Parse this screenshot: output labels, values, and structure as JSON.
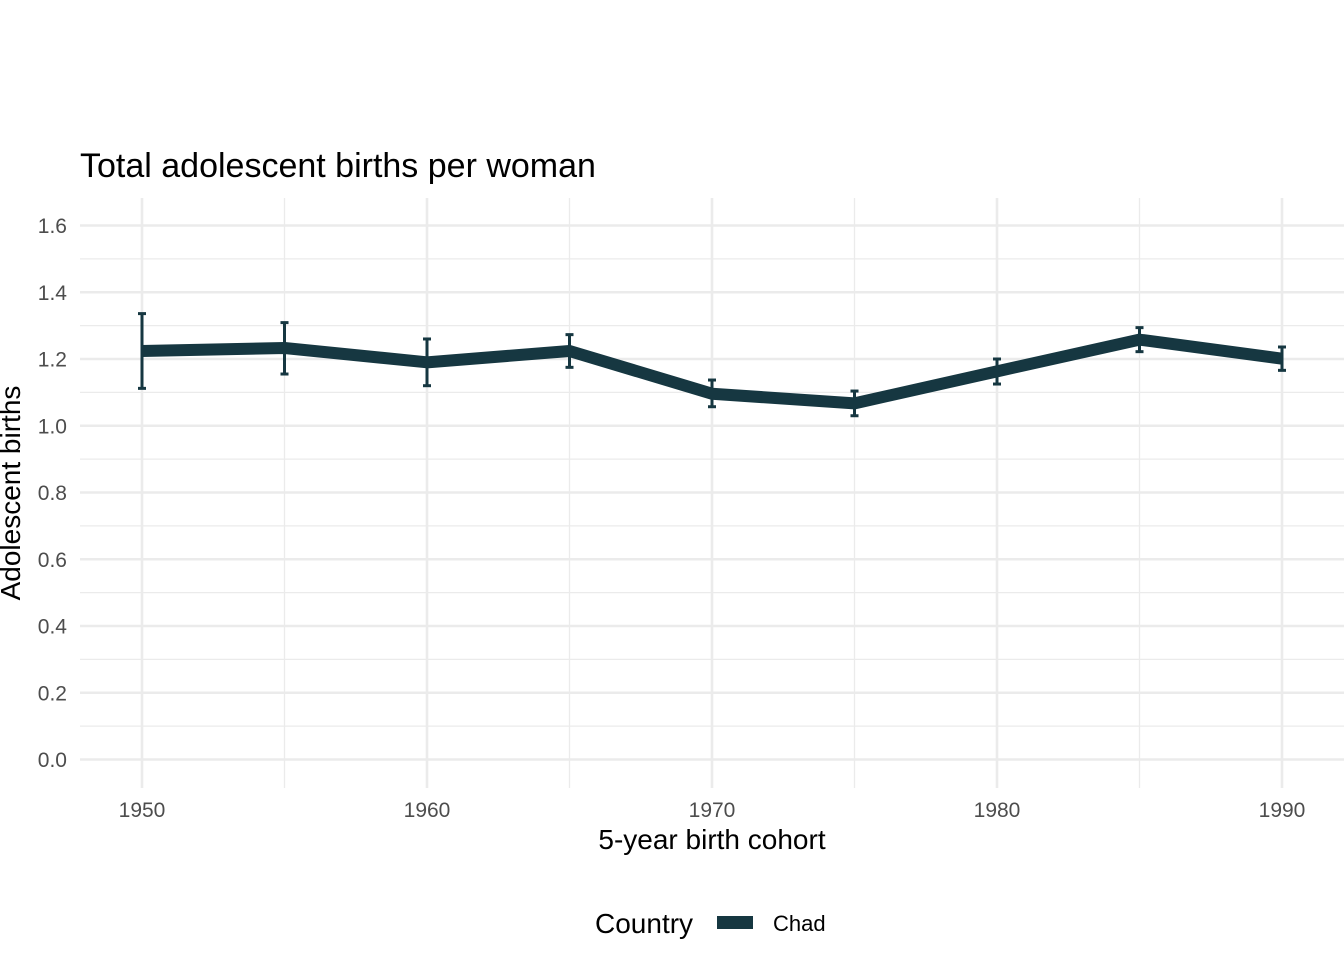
{
  "chart_data": {
    "type": "line",
    "title": "Total adolescent births per woman",
    "xlabel": "5-year birth cohort",
    "ylabel": "Adolescent births",
    "xlim": [
      1950,
      1990
    ],
    "ylim": [
      0,
      1.6
    ],
    "x_ticks": [
      "1950",
      "1960",
      "1970",
      "1980",
      "1990"
    ],
    "y_ticks": [
      "0.0",
      "0.2",
      "0.4",
      "0.6",
      "0.8",
      "1.0",
      "1.2",
      "1.4",
      "1.6"
    ],
    "legend_title": "Country",
    "legend_position": "bottom",
    "series": [
      {
        "name": "Chad",
        "color": "#163741",
        "x": [
          1950,
          1955,
          1960,
          1965,
          1970,
          1975,
          1980,
          1985,
          1990
        ],
        "values": [
          1.224,
          1.233,
          1.19,
          1.224,
          1.096,
          1.067,
          1.163,
          1.258,
          1.201
        ],
        "error_low": [
          1.112,
          1.155,
          1.12,
          1.175,
          1.057,
          1.03,
          1.125,
          1.222,
          1.166
        ],
        "error_high": [
          1.336,
          1.309,
          1.26,
          1.273,
          1.137,
          1.104,
          1.2,
          1.294,
          1.236
        ]
      }
    ]
  }
}
